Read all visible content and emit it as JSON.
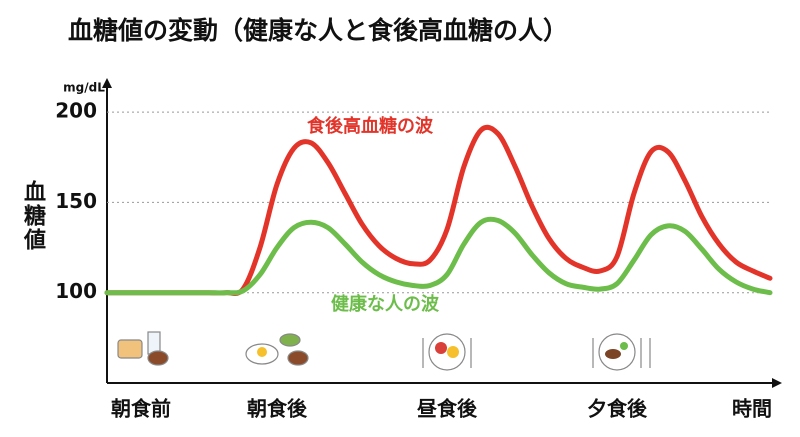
{
  "chart_data": {
    "type": "line",
    "title": "血糖値の変動（健康な人と食後高血糖の人）",
    "y_label": "血糖値",
    "y_unit": "mg/dL",
    "x_label": "時間",
    "categories": [
      null,
      null,
      "朝食前",
      null,
      null,
      null,
      null,
      null,
      null,
      null,
      "朝食後",
      null,
      null,
      null,
      null,
      null,
      null,
      null,
      null,
      null,
      "昼食後",
      null,
      null,
      null,
      null,
      null,
      null,
      null,
      null,
      null,
      "夕食後",
      null,
      null,
      null,
      null,
      null,
      null,
      null,
      null,
      null
    ],
    "series": [
      {
        "name": "食後高血糖の波",
        "color": "#e3342a",
        "values": [
          100,
          100,
          100,
          100,
          100,
          100,
          100,
          100,
          102,
          125,
          160,
          180,
          183,
          172,
          155,
          138,
          126,
          119,
          116,
          118,
          135,
          170,
          190,
          188,
          170,
          148,
          130,
          119,
          114,
          112,
          120,
          155,
          178,
          178,
          162,
          142,
          127,
          117,
          112,
          108
        ]
      },
      {
        "name": "健康な人の波",
        "color": "#6cbd4a",
        "values": [
          100,
          100,
          100,
          100,
          100,
          100,
          100,
          100,
          101,
          110,
          125,
          136,
          139,
          136,
          127,
          117,
          110,
          106,
          104,
          104,
          110,
          127,
          139,
          140,
          133,
          121,
          111,
          105,
          103,
          102,
          105,
          118,
          132,
          137,
          134,
          124,
          113,
          106,
          102,
          100
        ]
      }
    ],
    "ylim": [
      50,
      215
    ],
    "yticks": [
      100,
      150,
      200
    ],
    "grid": true
  }
}
